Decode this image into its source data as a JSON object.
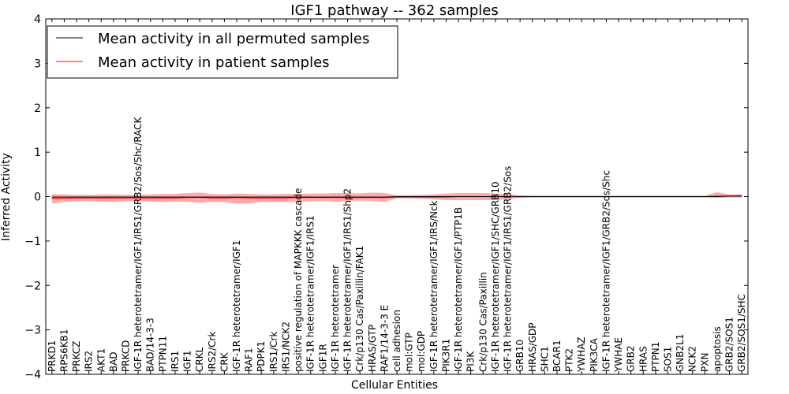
{
  "chart_data": {
    "type": "line",
    "title": "IGF1 pathway -- 362 samples",
    "xlabel": "Cellular Entities",
    "ylabel": "Inferred Activity",
    "ylim": [
      -4,
      4
    ],
    "yticks": [
      -4,
      -3,
      -2,
      -1,
      0,
      1,
      2,
      3,
      4
    ],
    "ytick_labels": [
      "−4",
      "−3",
      "−2",
      "−1",
      "0",
      "1",
      "2",
      "3",
      "4"
    ],
    "legend_position": "top-left",
    "categories": [
      "PRKD1",
      "RPS6KB1",
      "PRKCZ",
      "IRS2",
      "AKT1",
      "BAD",
      "PRKCD",
      "IGF-1R heterotetramer/IGF1/IRS1/GRB2/Sos/Shc/RACK",
      "BAD/14-3-3",
      "PTPN11",
      "IRS1",
      "IGF1",
      "CRKL",
      "IRS2/Crk",
      "CRK",
      "IGF-1R heterotetramer/IGF1",
      "RAF1",
      "PDPK1",
      "IRS1/Crk",
      "IRS1/NCK2",
      "positive regulation of MAPKKK cascade",
      "IGF-1R heterotetramer/IGF1/IRS1",
      "IGF1R",
      "IGF-1R heterotetramer",
      "IGF-1R heterotetramer/IGF1/IRS1/Shp2",
      "Crk/p130 Cas/Paxillin/FAK1",
      "HRAS/GTP",
      "RAF1/14-3-3 E",
      "cell adhesion",
      "mol:GTP",
      "mol:GDP",
      "IGF-1R heterotetramer/IGF1/IRS/Nck",
      "PIK3R1",
      "IGF-1R heterotetramer/IGF1/PTP1B",
      "PI3K",
      "Crk/p130 Cas/Paxillin",
      "IGF-1R heterotetramer/IGF1/SHC/GRB10",
      "IGF-1R heterotetramer/IGF1/IRS1/GRB2/Sos",
      "GRB10",
      "HRAS/GDP",
      "SHC1",
      "BCAR1",
      "PTK2",
      "YWHAZ",
      "PIK3CA",
      "IGF-1R heterotetramer/IGF1/GRB2/Sos/Shc",
      "YWHAE",
      "GRB2",
      "HRAS",
      "PTPN1",
      "SOS1",
      "GNB2L1",
      "NCK2",
      "PXN",
      "apoptosis",
      "GRB2/SOS1",
      "GRB2/SOS1/SHC"
    ],
    "series": [
      {
        "name": "Mean activity in all permuted samples",
        "color": "#000000",
        "values": [
          -0.01,
          -0.01,
          -0.01,
          -0.01,
          -0.01,
          -0.01,
          -0.01,
          -0.01,
          -0.01,
          -0.01,
          -0.01,
          -0.01,
          -0.01,
          -0.01,
          -0.01,
          -0.01,
          -0.01,
          -0.01,
          -0.01,
          -0.01,
          -0.01,
          -0.01,
          -0.01,
          -0.01,
          -0.01,
          -0.01,
          -0.01,
          -0.01,
          0.0,
          0.0,
          0.0,
          0.0,
          0.0,
          0.0,
          0.0,
          0.0,
          0.0,
          0.0,
          0.0,
          0.0,
          0.0,
          0.0,
          0.0,
          0.0,
          0.0,
          0.0,
          0.0,
          0.0,
          0.0,
          0.0,
          0.0,
          0.0,
          0.0,
          0.0,
          0.0,
          0.01,
          0.01
        ],
        "lower": [
          -0.03,
          -0.03,
          -0.03,
          -0.03,
          -0.03,
          -0.03,
          -0.03,
          -0.03,
          -0.03,
          -0.03,
          -0.03,
          -0.03,
          -0.03,
          -0.03,
          -0.03,
          -0.03,
          -0.03,
          -0.03,
          -0.03,
          -0.03,
          -0.03,
          -0.03,
          -0.03,
          -0.03,
          -0.03,
          -0.03,
          -0.03,
          -0.03,
          -0.03,
          -0.03,
          -0.03,
          -0.03,
          -0.03,
          -0.03,
          -0.03,
          -0.03,
          -0.03,
          -0.03,
          -0.03,
          -0.03,
          -0.03,
          -0.03,
          -0.03,
          -0.03,
          -0.03,
          -0.03,
          -0.03,
          -0.03,
          -0.03,
          -0.03,
          -0.03,
          -0.03,
          -0.03,
          -0.03,
          -0.03,
          -0.02,
          -0.02
        ],
        "upper": [
          0.01,
          0.01,
          0.01,
          0.01,
          0.01,
          0.01,
          0.01,
          0.01,
          0.01,
          0.01,
          0.01,
          0.01,
          0.01,
          0.01,
          0.01,
          0.01,
          0.01,
          0.01,
          0.01,
          0.01,
          0.01,
          0.01,
          0.01,
          0.01,
          0.01,
          0.01,
          0.01,
          0.01,
          0.02,
          0.02,
          0.02,
          0.02,
          0.02,
          0.02,
          0.02,
          0.02,
          0.02,
          0.02,
          0.02,
          0.02,
          0.02,
          0.02,
          0.02,
          0.02,
          0.02,
          0.02,
          0.02,
          0.02,
          0.02,
          0.02,
          0.02,
          0.02,
          0.02,
          0.02,
          0.02,
          0.03,
          0.03
        ]
      },
      {
        "name": "Mean activity in patient samples",
        "color": "#ff0000",
        "values": [
          -0.04,
          -0.04,
          -0.03,
          -0.03,
          -0.03,
          -0.03,
          -0.03,
          -0.03,
          -0.03,
          -0.03,
          -0.03,
          -0.02,
          -0.02,
          -0.03,
          -0.03,
          -0.02,
          -0.03,
          -0.03,
          -0.03,
          -0.03,
          -0.02,
          -0.02,
          -0.02,
          -0.02,
          -0.02,
          -0.02,
          -0.02,
          -0.02,
          -0.01,
          -0.01,
          -0.01,
          -0.01,
          -0.01,
          0.0,
          0.0,
          0.0,
          0.0,
          0.0,
          0.0,
          0.0,
          0.0,
          0.0,
          0.0,
          0.0,
          0.0,
          0.0,
          0.0,
          0.0,
          0.0,
          0.0,
          0.0,
          0.0,
          0.0,
          0.0,
          0.01,
          0.01,
          0.02
        ],
        "lower": [
          -0.15,
          -0.12,
          -0.1,
          -0.1,
          -0.11,
          -0.12,
          -0.1,
          -0.1,
          -0.11,
          -0.12,
          -0.11,
          -0.12,
          -0.14,
          -0.12,
          -0.12,
          -0.16,
          -0.15,
          -0.12,
          -0.12,
          -0.12,
          -0.12,
          -0.11,
          -0.1,
          -0.12,
          -0.1,
          -0.09,
          -0.1,
          -0.12,
          -0.04,
          -0.04,
          -0.05,
          -0.06,
          -0.08,
          -0.08,
          -0.08,
          -0.08,
          -0.08,
          -0.06,
          -0.03,
          -0.02,
          -0.02,
          -0.02,
          -0.02,
          -0.02,
          -0.02,
          -0.02,
          -0.02,
          -0.02,
          -0.02,
          -0.02,
          -0.02,
          -0.02,
          -0.02,
          -0.02,
          -0.02,
          -0.02,
          -0.02
        ],
        "upper": [
          0.06,
          0.05,
          0.04,
          0.04,
          0.05,
          0.05,
          0.04,
          0.04,
          0.05,
          0.06,
          0.06,
          0.08,
          0.09,
          0.06,
          0.05,
          0.07,
          0.06,
          0.05,
          0.05,
          0.06,
          0.06,
          0.07,
          0.07,
          0.08,
          0.08,
          0.07,
          0.09,
          0.08,
          0.03,
          0.03,
          0.04,
          0.05,
          0.07,
          0.08,
          0.08,
          0.08,
          0.07,
          0.06,
          0.03,
          0.02,
          0.02,
          0.02,
          0.02,
          0.02,
          0.02,
          0.02,
          0.02,
          0.02,
          0.02,
          0.02,
          0.02,
          0.02,
          0.02,
          0.02,
          0.1,
          0.05,
          0.05
        ]
      }
    ]
  }
}
